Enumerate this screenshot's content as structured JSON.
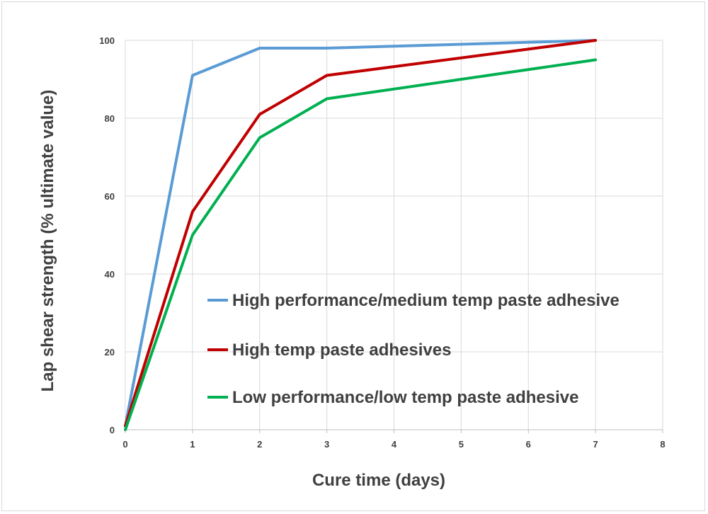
{
  "chart_data": {
    "type": "line",
    "title": "",
    "xlabel": "Cure time (days)",
    "ylabel": "Lap shear strength (% ultimate value)",
    "xlim": [
      0,
      8
    ],
    "ylim": [
      0,
      100
    ],
    "x_ticks": [
      0,
      1,
      2,
      3,
      4,
      5,
      6,
      7,
      8
    ],
    "y_ticks": [
      0,
      20,
      40,
      60,
      80,
      100
    ],
    "grid": true,
    "legend_position": "inside-lower-right",
    "series": [
      {
        "name": "High performance/medium temp paste adhesive",
        "color": "#5b9bd5",
        "x": [
          0,
          1,
          2,
          3,
          7
        ],
        "y": [
          1,
          91,
          98,
          98,
          100
        ]
      },
      {
        "name": "High temp paste adhesives",
        "color": "#c00000",
        "x": [
          0,
          1,
          2,
          3,
          7
        ],
        "y": [
          1,
          56,
          81,
          91,
          100
        ]
      },
      {
        "name": "Low performance/low temp paste adhesive",
        "color": "#00b050",
        "x": [
          0,
          1,
          2,
          3,
          7
        ],
        "y": [
          0,
          50,
          75,
          85,
          95
        ]
      }
    ]
  }
}
